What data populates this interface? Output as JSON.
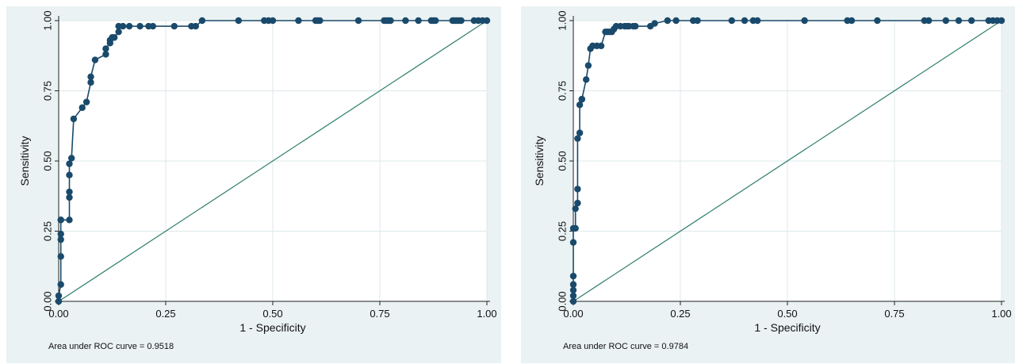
{
  "chart_data": [
    {
      "type": "line",
      "xlabel": "1 - Specificity",
      "ylabel": "Sensitivity",
      "xlim": [
        0,
        1
      ],
      "ylim": [
        0,
        1
      ],
      "xticks": [
        "0.00",
        "0.25",
        "0.50",
        "0.75",
        "1.00"
      ],
      "yticks": [
        "0.00",
        "0.25",
        "0.50",
        "0.75",
        "1.00"
      ],
      "grid": true,
      "note": "Area under ROC curve = 0.9518",
      "colors": {
        "curve": "#1a4a6b",
        "marker": "#1a4a6b",
        "reference": "#2e7d6b",
        "grid": "#dde8ea",
        "plot_bg": "#ffffff",
        "panel_bg": "#eaf2f3"
      },
      "series": [
        {
          "x": [
            0,
            0,
            0.005,
            0.005,
            0.005,
            0.005,
            0.005,
            0.005,
            0.025,
            0.025,
            0.025,
            0.025,
            0.025,
            0.03,
            0.035,
            0.055,
            0.065,
            0.075,
            0.075,
            0.085,
            0.11,
            0.11,
            0.12,
            0.12,
            0.125,
            0.13,
            0.14,
            0.14,
            0.15,
            0.165,
            0.19,
            0.21,
            0.22,
            0.27,
            0.31,
            0.32,
            0.335,
            0.42,
            0.48,
            0.49,
            0.5,
            0.56,
            0.6,
            0.605,
            0.61,
            0.7,
            0.76,
            0.765,
            0.77,
            0.775,
            0.81,
            0.84,
            0.87,
            0.875,
            0.88,
            0.92,
            0.925,
            0.93,
            0.935,
            0.94,
            0.97,
            0.98,
            0.99,
            1
          ],
          "y": [
            0,
            0.02,
            0.06,
            0.16,
            0.22,
            0.24,
            0.29,
            0.29,
            0.29,
            0.37,
            0.39,
            0.45,
            0.49,
            0.51,
            0.65,
            0.69,
            0.71,
            0.78,
            0.8,
            0.86,
            0.88,
            0.9,
            0.92,
            0.93,
            0.94,
            0.94,
            0.96,
            0.98,
            0.98,
            0.98,
            0.98,
            0.98,
            0.98,
            0.98,
            0.98,
            0.98,
            1,
            1,
            1,
            1,
            1,
            1,
            1,
            1,
            1,
            1,
            1,
            1,
            1,
            1,
            1,
            1,
            1,
            1,
            1,
            1,
            1,
            1,
            1,
            1,
            1,
            1,
            1,
            1
          ]
        },
        {
          "x": [
            0,
            1
          ],
          "y": [
            0,
            1
          ]
        }
      ]
    },
    {
      "type": "line",
      "xlabel": "1 - Specificity",
      "ylabel": "Sensitivity",
      "xlim": [
        0,
        1
      ],
      "ylim": [
        0,
        1
      ],
      "xticks": [
        "0.00",
        "0.25",
        "0.50",
        "0.75",
        "1.00"
      ],
      "yticks": [
        "0.00",
        "0.25",
        "0.50",
        "0.75",
        "1.00"
      ],
      "grid": true,
      "note": "Area under ROC curve = 0.9784",
      "colors": {
        "curve": "#1a4a6b",
        "marker": "#1a4a6b",
        "reference": "#2e7d6b",
        "grid": "#dde8ea",
        "plot_bg": "#ffffff",
        "panel_bg": "#eaf2f3"
      },
      "series": [
        {
          "x": [
            0,
            0,
            0,
            0,
            0,
            0,
            0,
            0.005,
            0.005,
            0.01,
            0.01,
            0.01,
            0.015,
            0.015,
            0.02,
            0.02,
            0.03,
            0.035,
            0.04,
            0.045,
            0.055,
            0.065,
            0.075,
            0.08,
            0.085,
            0.09,
            0.095,
            0.1,
            0.11,
            0.12,
            0.125,
            0.13,
            0.14,
            0.145,
            0.18,
            0.19,
            0.22,
            0.24,
            0.28,
            0.29,
            0.37,
            0.4,
            0.42,
            0.43,
            0.54,
            0.64,
            0.65,
            0.71,
            0.82,
            0.83,
            0.87,
            0.9,
            0.93,
            0.97,
            0.98,
            0.99,
            1
          ],
          "y": [
            0,
            0.02,
            0.04,
            0.06,
            0.09,
            0.21,
            0.26,
            0.26,
            0.33,
            0.35,
            0.4,
            0.58,
            0.6,
            0.7,
            0.72,
            0.72,
            0.79,
            0.84,
            0.9,
            0.91,
            0.91,
            0.91,
            0.96,
            0.96,
            0.96,
            0.96,
            0.97,
            0.98,
            0.98,
            0.98,
            0.98,
            0.98,
            0.98,
            0.98,
            0.98,
            0.99,
            1,
            1,
            1,
            1,
            1,
            1,
            1,
            1,
            1,
            1,
            1,
            1,
            1,
            1,
            1,
            1,
            1,
            1,
            1,
            1,
            1
          ]
        },
        {
          "x": [
            0,
            1
          ],
          "y": [
            0,
            1
          ]
        }
      ]
    }
  ]
}
